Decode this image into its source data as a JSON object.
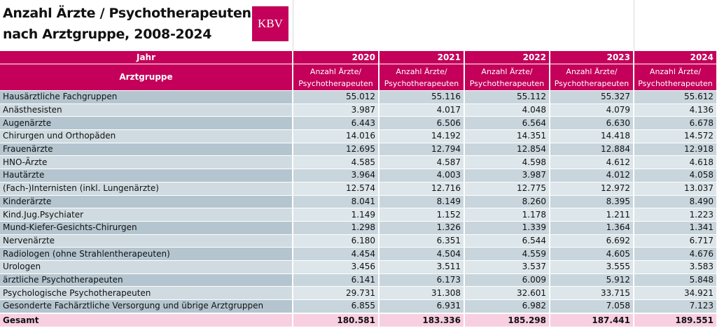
{
  "header": {
    "title_lines": [
      "Anzahl Ärzte / Psychotherapeuten",
      "nach Arztgruppe, 2008-2024"
    ],
    "logo": "KBV"
  },
  "table": {
    "year_label": "Jahr",
    "group_label": "Arztgruppe",
    "years": [
      "2020",
      "2021",
      "2022",
      "2023",
      "2024"
    ],
    "measure_lines": [
      "Anzahl Ärzte/",
      "Psychotherapeuten"
    ],
    "rows": [
      [
        "Hausärztliche Fachgruppen",
        "55.012",
        "55.116",
        "55.112",
        "55.327",
        "55.612"
      ],
      [
        "Anästhesisten",
        "3.987",
        "4.017",
        "4.048",
        "4.079",
        "4.136"
      ],
      [
        "Augenärzte",
        "6.443",
        "6.506",
        "6.564",
        "6.630",
        "6.678"
      ],
      [
        "Chirurgen und Orthopäden",
        "14.016",
        "14.192",
        "14.351",
        "14.418",
        "14.572"
      ],
      [
        "Frauenärzte",
        "12.695",
        "12.794",
        "12.854",
        "12.884",
        "12.918"
      ],
      [
        "HNO-Ärzte",
        "4.585",
        "4.587",
        "4.598",
        "4.612",
        "4.618"
      ],
      [
        "Hautärzte",
        "3.964",
        "4.003",
        "3.987",
        "4.012",
        "4.058"
      ],
      [
        "(Fach-)Internisten (inkl. Lungenärzte)",
        "12.574",
        "12.716",
        "12.775",
        "12.972",
        "13.037"
      ],
      [
        "Kinderärzte",
        "8.041",
        "8.149",
        "8.260",
        "8.395",
        "8.490"
      ],
      [
        "Kind.Jug.Psychiater",
        "1.149",
        "1.152",
        "1.178",
        "1.211",
        "1.223"
      ],
      [
        "Mund-Kiefer-Gesichts-Chirurgen",
        "1.298",
        "1.326",
        "1.339",
        "1.364",
        "1.341"
      ],
      [
        "Nervenärzte",
        "6.180",
        "6.351",
        "6.544",
        "6.692",
        "6.717"
      ],
      [
        "Radiologen (ohne Strahlentherapeuten)",
        "4.454",
        "4.504",
        "4.559",
        "4.605",
        "4.676"
      ],
      [
        "Urologen",
        "3.456",
        "3.511",
        "3.537",
        "3.555",
        "3.583"
      ],
      [
        "ärztliche Psychotherapeuten",
        "6.141",
        "6.173",
        "6.009",
        "5.912",
        "5.848"
      ],
      [
        "Psychologische Psychotherapeuten",
        "29.731",
        "31.308",
        "32.601",
        "33.715",
        "34.921"
      ],
      [
        "Gesonderte Fachärztliche Versorgung und übrige Arztgruppen",
        "6.855",
        "6.931",
        "6.982",
        "7.058",
        "7.123"
      ]
    ],
    "total": [
      "Gesamt",
      "180.581",
      "183.336",
      "185.298",
      "187.441",
      "189.551"
    ]
  }
}
